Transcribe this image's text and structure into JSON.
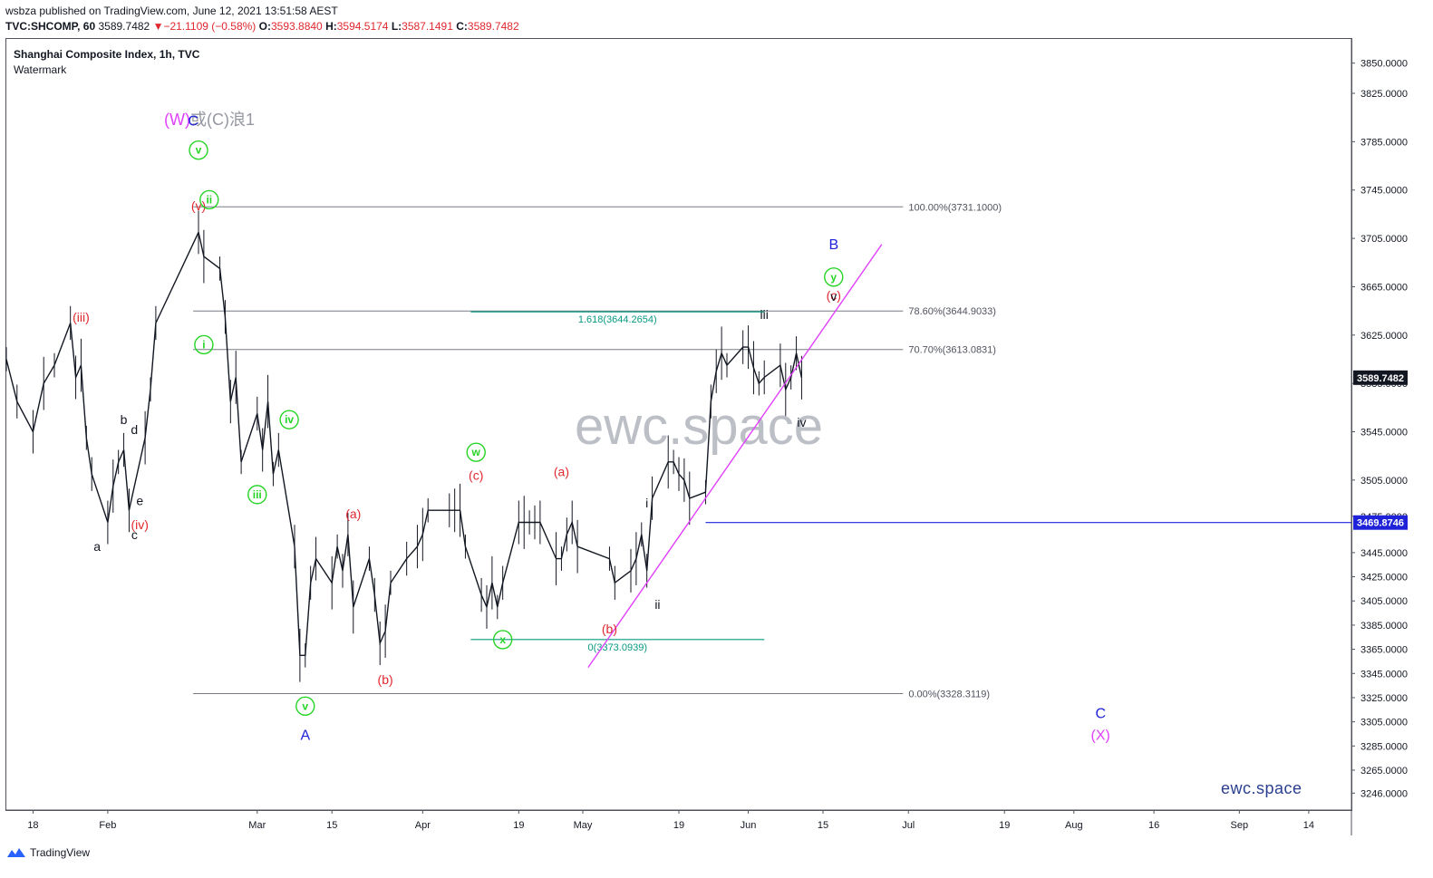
{
  "header": {
    "publisher": "wsbza published on TradingView.com, June 12, 2021 13:51:58 AEST",
    "symbol": "TVC:SHCOMP, 60",
    "last": "3589.7482",
    "change_arrow": "▼",
    "change": "−21.1109 (−0.58%)",
    "o_label": "O:",
    "o_value": "3593.8840",
    "h_label": "H:",
    "h_value": "3594.5174",
    "l_label": "L:",
    "l_value": "3587.1491",
    "c_label": "C:",
    "c_value": "3589.7482"
  },
  "legend": {
    "title": "Shanghai Composite Index, 1h, TVC",
    "subtitle": "Watermark"
  },
  "watermark_text": "ewc.space",
  "brand_text": "ewc.space",
  "footer": {
    "logo_text": "TradingView",
    "logo_icon": "tradingview-logo-icon"
  },
  "wave_note": {
    "w": "(W)",
    "rest": "或(C)浪1"
  },
  "colors": {
    "price": "#131722",
    "axis_text": "#131722",
    "fib_grey": "#787b86",
    "fib_teal": "#089981",
    "trendline": "#e040fb",
    "hline": "#1e22d8",
    "red_label": "#e0282e",
    "green_label": "#26d426",
    "blue_label": "#1e22d8",
    "magenta_label": "#e040fb",
    "black_label": "#131722"
  },
  "chart_data": {
    "type": "line",
    "y_axis": {
      "range": [
        3232,
        3870
      ],
      "ticks": [
        "3850.0000",
        "3825.0000",
        "3785.0000",
        "3745.0000",
        "3705.0000",
        "3665.0000",
        "3625.0000",
        "3585.0000",
        "3545.0000",
        "3505.0000",
        "3475.0000",
        "3445.0000",
        "3425.0000",
        "3405.0000",
        "3385.0000",
        "3365.0000",
        "3345.0000",
        "3325.0000",
        "3305.0000",
        "3285.0000",
        "3265.0000",
        "3246.0000"
      ]
    },
    "x_axis": {
      "range": [
        "2021-01-13",
        "2021-09-22"
      ],
      "ticks": [
        {
          "label": "18",
          "date": "2021-01-18"
        },
        {
          "label": "Feb",
          "date": "2021-02-01"
        },
        {
          "label": "Mar",
          "date": "2021-03-01"
        },
        {
          "label": "15",
          "date": "2021-03-15"
        },
        {
          "label": "Apr",
          "date": "2021-04-01"
        },
        {
          "label": "19",
          "date": "2021-04-19"
        },
        {
          "label": "May",
          "date": "2021-05-01"
        },
        {
          "label": "19",
          "date": "2021-05-19"
        },
        {
          "label": "Jun",
          "date": "2021-06-01"
        },
        {
          "label": "15",
          "date": "2021-06-15"
        },
        {
          "label": "Jul",
          "date": "2021-07-01"
        },
        {
          "label": "19",
          "date": "2021-07-19"
        },
        {
          "label": "Aug",
          "date": "2021-08-01"
        },
        {
          "label": "16",
          "date": "2021-08-16"
        },
        {
          "label": "Sep",
          "date": "2021-09-01"
        },
        {
          "label": "14",
          "date": "2021-09-14"
        }
      ]
    },
    "series": [
      {
        "values": [
          [
            "2021-01-13",
            3605
          ],
          [
            "2021-01-15",
            3570
          ],
          [
            "2021-01-18",
            3545
          ],
          [
            "2021-01-20",
            3585
          ],
          [
            "2021-01-22",
            3600
          ],
          [
            "2021-01-25",
            3635
          ],
          [
            "2021-01-26",
            3590
          ],
          [
            "2021-01-27",
            3600
          ],
          [
            "2021-01-28",
            3540
          ],
          [
            "2021-01-29",
            3510
          ],
          [
            "2021-02-01",
            3470
          ],
          [
            "2021-02-02",
            3500
          ],
          [
            "2021-02-03",
            3520
          ],
          [
            "2021-02-04",
            3530
          ],
          [
            "2021-02-05",
            3480
          ],
          [
            "2021-02-08",
            3540
          ],
          [
            "2021-02-09",
            3580
          ],
          [
            "2021-02-10",
            3635
          ],
          [
            "2021-02-18",
            3710
          ],
          [
            "2021-02-19",
            3690
          ],
          [
            "2021-02-22",
            3680
          ],
          [
            "2021-02-23",
            3640
          ],
          [
            "2021-02-24",
            3570
          ],
          [
            "2021-02-25",
            3590
          ],
          [
            "2021-02-26",
            3520
          ],
          [
            "2021-03-01",
            3560
          ],
          [
            "2021-03-02",
            3530
          ],
          [
            "2021-03-03",
            3570
          ],
          [
            "2021-03-04",
            3510
          ],
          [
            "2021-03-05",
            3530
          ],
          [
            "2021-03-08",
            3450
          ],
          [
            "2021-03-09",
            3360
          ],
          [
            "2021-03-10",
            3360
          ],
          [
            "2021-03-11",
            3420
          ],
          [
            "2021-03-12",
            3440
          ],
          [
            "2021-03-15",
            3420
          ],
          [
            "2021-03-16",
            3450
          ],
          [
            "2021-03-17",
            3430
          ],
          [
            "2021-03-18",
            3460
          ],
          [
            "2021-03-19",
            3400
          ],
          [
            "2021-03-22",
            3440
          ],
          [
            "2021-03-23",
            3410
          ],
          [
            "2021-03-24",
            3370
          ],
          [
            "2021-03-25",
            3380
          ],
          [
            "2021-03-26",
            3420
          ],
          [
            "2021-03-29",
            3440
          ],
          [
            "2021-03-31",
            3450
          ],
          [
            "2021-04-01",
            3460
          ],
          [
            "2021-04-02",
            3480
          ],
          [
            "2021-04-06",
            3480
          ],
          [
            "2021-04-07",
            3480
          ],
          [
            "2021-04-08",
            3480
          ],
          [
            "2021-04-09",
            3450
          ],
          [
            "2021-04-12",
            3410
          ],
          [
            "2021-04-13",
            3400
          ],
          [
            "2021-04-14",
            3420
          ],
          [
            "2021-04-15",
            3400
          ],
          [
            "2021-04-16",
            3420
          ],
          [
            "2021-04-19",
            3470
          ],
          [
            "2021-04-20",
            3470
          ],
          [
            "2021-04-21",
            3470
          ],
          [
            "2021-04-22",
            3470
          ],
          [
            "2021-04-23",
            3470
          ],
          [
            "2021-04-26",
            3440
          ],
          [
            "2021-04-27",
            3440
          ],
          [
            "2021-04-28",
            3460
          ],
          [
            "2021-04-29",
            3470
          ],
          [
            "2021-04-30",
            3450
          ],
          [
            "2021-05-06",
            3440
          ],
          [
            "2021-05-07",
            3420
          ],
          [
            "2021-05-10",
            3430
          ],
          [
            "2021-05-11",
            3440
          ],
          [
            "2021-05-12",
            3460
          ],
          [
            "2021-05-13",
            3430
          ],
          [
            "2021-05-14",
            3490
          ],
          [
            "2021-05-17",
            3520
          ],
          [
            "2021-05-18",
            3520
          ],
          [
            "2021-05-19",
            3510
          ],
          [
            "2021-05-20",
            3505
          ],
          [
            "2021-05-21",
            3490
          ],
          [
            "2021-05-24",
            3495
          ],
          [
            "2021-05-25",
            3570
          ],
          [
            "2021-05-26",
            3595
          ],
          [
            "2021-05-27",
            3610
          ],
          [
            "2021-05-28",
            3600
          ],
          [
            "2021-05-31",
            3615
          ],
          [
            "2021-06-01",
            3615
          ],
          [
            "2021-06-02",
            3598
          ],
          [
            "2021-06-03",
            3585
          ],
          [
            "2021-06-04",
            3590
          ],
          [
            "2021-06-07",
            3600
          ],
          [
            "2021-06-08",
            3580
          ],
          [
            "2021-06-09",
            3590
          ],
          [
            "2021-06-10",
            3610
          ],
          [
            "2021-06-11",
            3589.7482
          ]
        ]
      }
    ],
    "fib_levels": [
      {
        "label": "100.00%(3731.1000)",
        "value": 3731.1
      },
      {
        "label": "78.60%(3644.9033)",
        "value": 3644.9033
      },
      {
        "label": "70.70%(3613.0831)",
        "value": 3613.0831
      },
      {
        "label": "0.00%(3328.3119)",
        "value": 3328.3119
      }
    ],
    "teal_levels": [
      {
        "label": "1.618(3644.2654)",
        "value": 3644.2654
      },
      {
        "label": "0(3373.0939)",
        "value": 3373.0939
      }
    ],
    "horizontal_line": {
      "value": 3469.8746,
      "start": "2021-05-24",
      "label": "3469.8746"
    },
    "last_price_label": "3589.7482",
    "trendline": {
      "start": [
        "2021-05-02",
        3350
      ],
      "end": [
        "2021-06-26",
        3700
      ]
    },
    "wave_labels": [
      {
        "text": "(iii)",
        "date": "2021-01-27",
        "value": 3640,
        "color": "red_label"
      },
      {
        "text": "(v)",
        "date": "2021-02-18",
        "value": 3732,
        "color": "red_label"
      },
      {
        "text": "(iv)",
        "date": "2021-02-07",
        "value": 3468,
        "color": "red_label"
      },
      {
        "text": "(a)",
        "date": "2021-03-19",
        "value": 3477,
        "color": "red_label"
      },
      {
        "text": "(b)",
        "date": "2021-03-25",
        "value": 3340,
        "color": "red_label"
      },
      {
        "text": "(c)",
        "date": "2021-04-11",
        "value": 3509,
        "color": "red_label"
      },
      {
        "text": "(a)",
        "date": "2021-04-27",
        "value": 3512,
        "color": "red_label"
      },
      {
        "text": "(b)",
        "date": "2021-05-06",
        "value": 3382,
        "color": "red_label"
      },
      {
        "text": "(c)",
        "date": "2021-06-17",
        "value": 3658,
        "color": "red_label"
      },
      {
        "text": "v",
        "date": "2021-02-18",
        "value": 3778,
        "color": "green_label",
        "circled": true
      },
      {
        "text": "ii",
        "date": "2021-02-20",
        "value": 3737,
        "color": "green_label",
        "circled": true
      },
      {
        "text": "i",
        "date": "2021-02-19",
        "value": 3617,
        "color": "green_label",
        "circled": true
      },
      {
        "text": "iii",
        "date": "2021-03-01",
        "value": 3493,
        "color": "green_label",
        "circled": true
      },
      {
        "text": "iv",
        "date": "2021-03-07",
        "value": 3555,
        "color": "green_label",
        "circled": true
      },
      {
        "text": "v",
        "date": "2021-03-10",
        "value": 3318,
        "color": "green_label",
        "circled": true
      },
      {
        "text": "w",
        "date": "2021-04-11",
        "value": 3528,
        "color": "green_label",
        "circled": true
      },
      {
        "text": "x",
        "date": "2021-04-16",
        "value": 3373,
        "color": "green_label",
        "circled": true
      },
      {
        "text": "y",
        "date": "2021-06-17",
        "value": 3673,
        "color": "green_label",
        "circled": true
      },
      {
        "text": "C",
        "date": "2021-02-17",
        "value": 3802,
        "color": "blue_label"
      },
      {
        "text": "A",
        "date": "2021-03-10",
        "value": 3294,
        "color": "blue_label"
      },
      {
        "text": "B",
        "date": "2021-06-17",
        "value": 3700,
        "color": "blue_label"
      },
      {
        "text": "C",
        "date": "2021-08-06",
        "value": 3312,
        "color": "blue_label"
      },
      {
        "text": "(X)",
        "date": "2021-08-06",
        "value": 3294,
        "color": "magenta_label"
      },
      {
        "text": "a",
        "date": "2021-01-30",
        "value": 3450,
        "color": "black_label"
      },
      {
        "text": "b",
        "date": "2021-02-04",
        "value": 3555,
        "color": "black_label"
      },
      {
        "text": "c",
        "date": "2021-02-06",
        "value": 3460,
        "color": "black_label"
      },
      {
        "text": "d",
        "date": "2021-02-06",
        "value": 3547,
        "color": "black_label"
      },
      {
        "text": "e",
        "date": "2021-02-07",
        "value": 3488,
        "color": "black_label"
      },
      {
        "text": "iii",
        "date": "2021-06-04",
        "value": 3642,
        "color": "black_label"
      },
      {
        "text": "iv",
        "date": "2021-06-11",
        "value": 3553,
        "color": "black_label"
      },
      {
        "text": "v",
        "date": "2021-06-17",
        "value": 3657,
        "color": "black_label"
      },
      {
        "text": "i",
        "date": "2021-05-13",
        "value": 3486,
        "color": "black_label"
      },
      {
        "text": "ii",
        "date": "2021-05-15",
        "value": 3402,
        "color": "black_label"
      }
    ]
  }
}
